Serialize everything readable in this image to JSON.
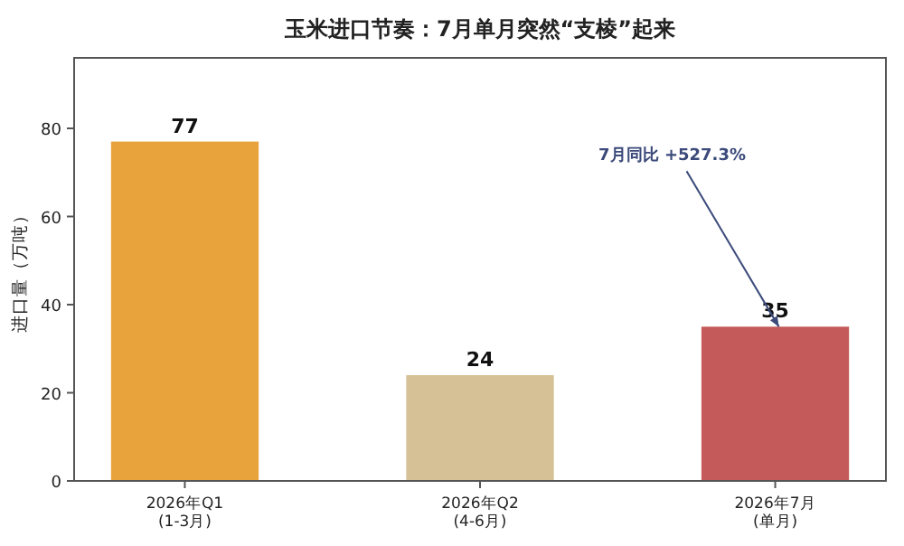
{
  "chart_data": {
    "type": "bar",
    "title": "玉米进口节奏：7月单月突然“支棱”起来",
    "ylabel": "进口量（万吨）",
    "categories": [
      "2026年Q1\n(1-3月)",
      "2026年Q2\n(4-6月)",
      "2026年7月\n(单月)"
    ],
    "values": [
      77,
      24,
      35
    ],
    "colors": [
      "#e8a33d",
      "#d6c197",
      "#c55a5a"
    ],
    "ylim": [
      0,
      96
    ],
    "yticks": [
      0,
      20,
      40,
      60,
      80
    ],
    "data_labels": true,
    "annotations": [
      {
        "text": "7月同比 +527.3%",
        "x": "2026年7月\n(单月)",
        "y": 35
      }
    ]
  }
}
